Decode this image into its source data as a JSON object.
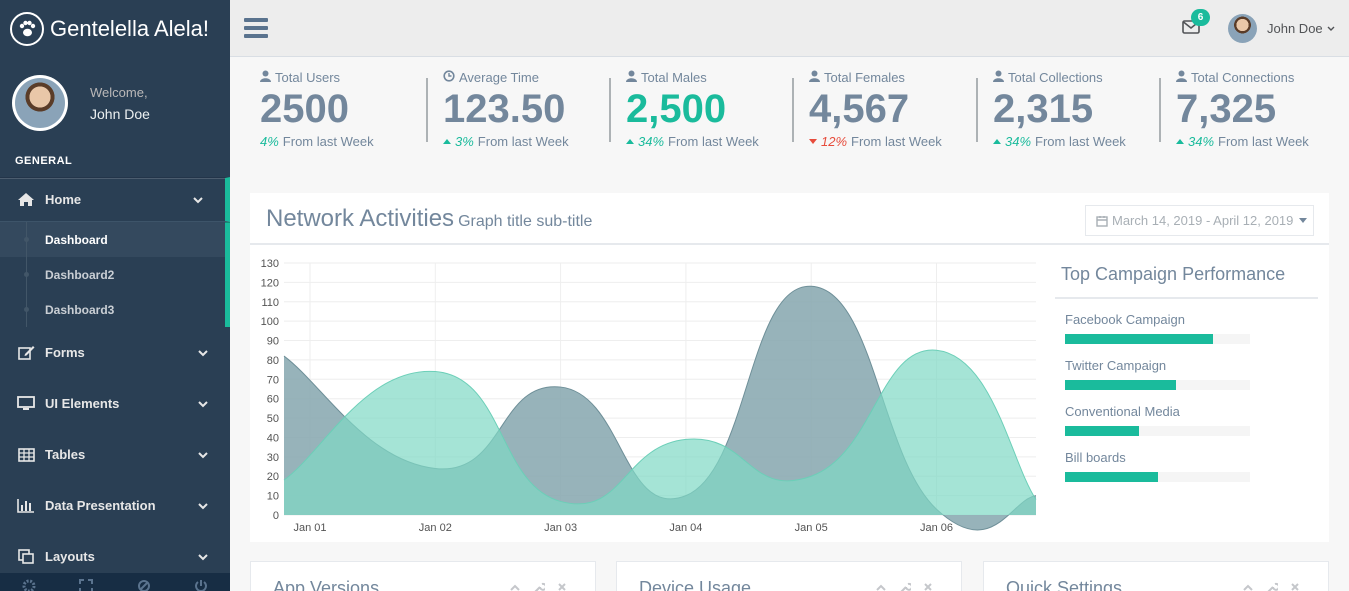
{
  "brand": {
    "title": "Gentelella Alela!",
    "logo_icon": "paw-icon"
  },
  "profile": {
    "welcome": "Welcome,",
    "name": "John Doe"
  },
  "sidebar": {
    "section_title": "GENERAL",
    "items": [
      {
        "label": "Home",
        "icon": "home-icon"
      },
      {
        "label": "Forms",
        "icon": "edit-icon"
      },
      {
        "label": "UI Elements",
        "icon": "desktop-icon"
      },
      {
        "label": "Tables",
        "icon": "table-icon"
      },
      {
        "label": "Data Presentation",
        "icon": "bar-chart-icon"
      },
      {
        "label": "Layouts",
        "icon": "clone-icon"
      }
    ],
    "home_submenu": [
      "Dashboard",
      "Dashboard2",
      "Dashboard3"
    ],
    "current_submenu": "Dashboard"
  },
  "topnav": {
    "mail_count": "6",
    "user_name": "John Doe"
  },
  "stats": [
    {
      "label": "Total Users",
      "value": "2500",
      "pct": "4%",
      "trend": "none",
      "foot": "From last Week",
      "highlight": false,
      "icon": "user-icon"
    },
    {
      "label": "Average Time",
      "value": "123.50",
      "pct": "3%",
      "trend": "up",
      "foot": "From last Week",
      "highlight": false,
      "icon": "clock-icon"
    },
    {
      "label": "Total Males",
      "value": "2,500",
      "pct": "34%",
      "trend": "up",
      "foot": "From last Week",
      "highlight": true,
      "icon": "user-icon"
    },
    {
      "label": "Total Females",
      "value": "4,567",
      "pct": "12%",
      "trend": "down",
      "foot": "From last Week",
      "highlight": false,
      "icon": "user-icon"
    },
    {
      "label": "Total Collections",
      "value": "2,315",
      "pct": "34%",
      "trend": "up",
      "foot": "From last Week",
      "highlight": false,
      "icon": "user-icon"
    },
    {
      "label": "Total Connections",
      "value": "7,325",
      "pct": "34%",
      "trend": "up",
      "foot": "From last Week",
      "highlight": false,
      "icon": "user-icon"
    }
  ],
  "panel": {
    "title": "Network Activities",
    "subtitle": "Graph title sub-title",
    "date_range": "March 14, 2019 - April 12, 2019"
  },
  "chart_data": {
    "type": "area",
    "x": [
      "Jan 01",
      "Jan 02",
      "Jan 03",
      "Jan 04",
      "Jan 05",
      "Jan 06"
    ],
    "ylim": [
      0,
      130
    ],
    "yticks": [
      0,
      10,
      20,
      30,
      40,
      50,
      60,
      70,
      80,
      90,
      100,
      110,
      120,
      130
    ],
    "grid": true,
    "series": [
      {
        "points": [
          [
            0,
            82
          ],
          [
            1,
            24
          ],
          [
            2,
            66
          ],
          [
            3,
            10
          ],
          [
            4,
            118
          ],
          [
            5,
            3
          ],
          [
            5.9,
            10
          ]
        ],
        "color": "#85A6AE"
      },
      {
        "points": [
          [
            0,
            18
          ],
          [
            1,
            74
          ],
          [
            2,
            7
          ],
          [
            3,
            39
          ],
          [
            4,
            20
          ],
          [
            5,
            85
          ],
          [
            5.9,
            8
          ]
        ],
        "color": "#7FD9C5"
      }
    ]
  },
  "campaign": {
    "title": "Top Campaign Performance",
    "items": [
      {
        "label": "Facebook Campaign",
        "value": 80
      },
      {
        "label": "Twitter Campaign",
        "value": 60
      },
      {
        "label": "Conventional Media",
        "value": 40
      },
      {
        "label": "Bill boards",
        "value": 50
      }
    ]
  },
  "bottom_panels": [
    "App Versions",
    "Device Usage",
    "Quick Settings"
  ]
}
